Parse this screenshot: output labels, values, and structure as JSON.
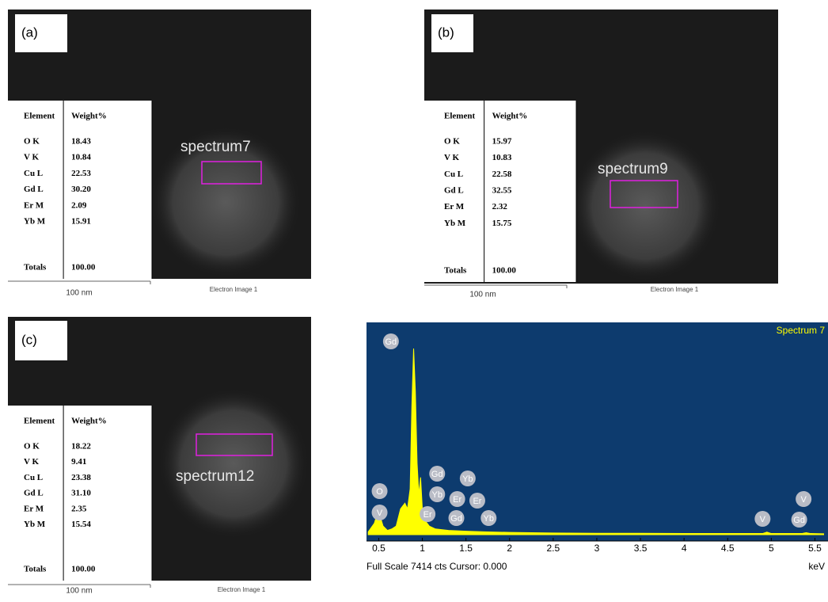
{
  "panels": [
    {
      "label": "(a)",
      "spectrum_label": "spectrum7",
      "table": {
        "header": [
          "Element",
          "Weight%"
        ],
        "rows": [
          [
            "O K",
            "18.43"
          ],
          [
            "V K",
            "10.84"
          ],
          [
            "Cu L",
            "22.53"
          ],
          [
            "Gd L",
            "30.20"
          ],
          [
            "Er M",
            "2.09"
          ],
          [
            "Yb M",
            "15.91"
          ]
        ],
        "totals": [
          "Totals",
          "100.00"
        ]
      },
      "scale_bar": "100 nm",
      "caption": "Electron Image 1"
    },
    {
      "label": "(b)",
      "spectrum_label": "spectrum9",
      "table": {
        "header": [
          "Element",
          "Weight%"
        ],
        "rows": [
          [
            "O K",
            "15.97"
          ],
          [
            "V K",
            "10.83"
          ],
          [
            "Cu L",
            "22.58"
          ],
          [
            "Gd L",
            "32.55"
          ],
          [
            "Er M",
            "2.32"
          ],
          [
            "Yb M",
            "15.75"
          ]
        ],
        "totals": [
          "Totals",
          "100.00"
        ]
      },
      "scale_bar": "100 nm",
      "caption": "Electron Image 1"
    },
    {
      "label": "(c)",
      "spectrum_label": "spectrum12",
      "table": {
        "header": [
          "Element",
          "Weight%"
        ],
        "rows": [
          [
            "O K",
            "18.22"
          ],
          [
            "V K",
            "9.41"
          ],
          [
            "Cu L",
            "23.38"
          ],
          [
            "Gd L",
            "31.10"
          ],
          [
            "Er M",
            "2.35"
          ],
          [
            "Yb M",
            "15.54"
          ]
        ],
        "totals": [
          "Totals",
          "100.00"
        ]
      },
      "scale_bar": "100 nm",
      "caption": "Electron Image 1"
    }
  ],
  "chart_data": {
    "type": "area",
    "title": "Spectrum 7",
    "color": "#ffff00",
    "x": [
      0.38,
      0.45,
      0.5,
      0.52,
      0.55,
      0.6,
      0.65,
      0.7,
      0.75,
      0.8,
      0.83,
      0.86,
      0.88,
      0.9,
      0.92,
      0.94,
      0.96,
      0.98,
      1.0,
      1.03,
      1.08,
      1.15,
      1.3,
      1.5,
      1.7,
      2.0,
      2.5,
      3.0,
      3.5,
      4.0,
      4.5,
      4.9,
      4.95,
      5.0,
      5.35,
      5.4,
      5.45,
      5.6
    ],
    "values": [
      100,
      400,
      900,
      600,
      300,
      150,
      200,
      300,
      900,
      1100,
      900,
      1600,
      4500,
      6500,
      5000,
      2500,
      1400,
      2000,
      900,
      500,
      300,
      200,
      150,
      120,
      100,
      80,
      60,
      50,
      50,
      40,
      40,
      40,
      90,
      40,
      40,
      70,
      40,
      30
    ],
    "xlim": [
      0.36,
      5.65
    ],
    "ylim": [
      0,
      7414
    ],
    "xticks": [
      0.5,
      1,
      1.5,
      2,
      2.5,
      3,
      3.5,
      4,
      4.5,
      5,
      5.5
    ],
    "x_label": "keV",
    "footer": "Full Scale 7414 cts Cursor: 0.000",
    "annotations": [
      {
        "label": "Gd",
        "x": 0.64
      },
      {
        "label": "O",
        "x": 0.51
      },
      {
        "label": "V",
        "x": 0.51
      },
      {
        "label": "Gd",
        "x": 1.17
      },
      {
        "label": "Yb",
        "x": 1.52
      },
      {
        "label": "Yb",
        "x": 1.17
      },
      {
        "label": "Er",
        "x": 1.4
      },
      {
        "label": "Er",
        "x": 1.63
      },
      {
        "label": "Er",
        "x": 1.06
      },
      {
        "label": "Gd",
        "x": 1.39
      },
      {
        "label": "Yb",
        "x": 1.76
      },
      {
        "label": "V",
        "x": 4.9
      },
      {
        "label": "V",
        "x": 5.37
      },
      {
        "label": "Gd",
        "x": 5.32
      }
    ]
  }
}
